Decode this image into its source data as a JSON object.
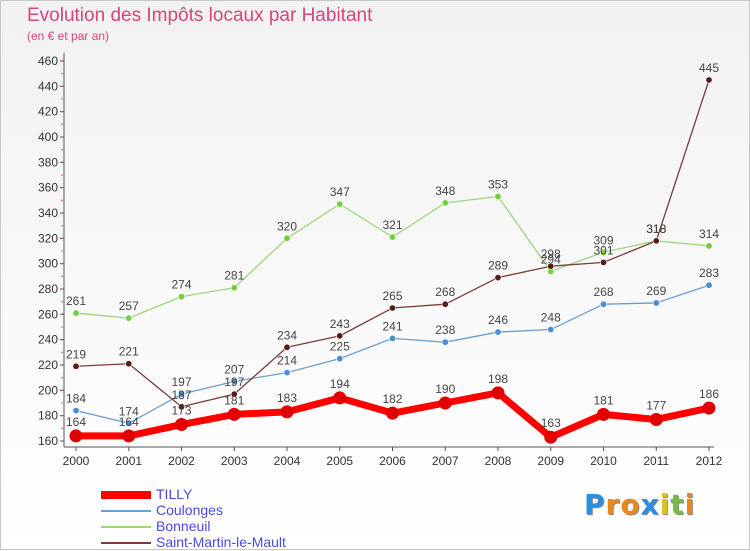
{
  "title": "Evolution des Impôts locaux par Habitant",
  "subtitle": "(en € et par an)",
  "logo": {
    "letters": [
      "P",
      "r",
      "o",
      "x",
      "i",
      "t",
      "i"
    ],
    "colors": [
      "#2a8fe0",
      "#e8881f",
      "#e8881f",
      "#2a8fe0",
      "#e0c21a",
      "#79bd3a",
      "#e8881f"
    ]
  },
  "chart_data": {
    "type": "line",
    "title": "Evolution des Impôts locaux par Habitant",
    "subtitle": "(en € et par an)",
    "x": [
      2000,
      2001,
      2002,
      2003,
      2004,
      2005,
      2006,
      2007,
      2008,
      2009,
      2010,
      2011,
      2012
    ],
    "ylim": [
      160,
      460
    ],
    "yticks": [
      160,
      180,
      200,
      220,
      240,
      260,
      280,
      300,
      320,
      340,
      360,
      380,
      400,
      420,
      440,
      460
    ],
    "grid": false,
    "legend_position": "bottom-left",
    "series": [
      {
        "name": "TILLY",
        "color": "#ff0000",
        "marker_color": "#e00000",
        "emphasis": true,
        "values": [
          164,
          164,
          173,
          181,
          183,
          194,
          182,
          190,
          198,
          163,
          181,
          177,
          186
        ]
      },
      {
        "name": "Coulonges",
        "color": "#6a9fcf",
        "marker_color": "#4a8fd4",
        "values": [
          184,
          174,
          197,
          207,
          214,
          225,
          241,
          238,
          246,
          248,
          268,
          269,
          283
        ]
      },
      {
        "name": "Bonneuil",
        "color": "#9ed67a",
        "marker_color": "#6fd03a",
        "values": [
          261,
          257,
          274,
          281,
          320,
          347,
          321,
          348,
          353,
          294,
          309,
          318,
          314
        ]
      },
      {
        "name": "Saint-Martin-le-Mault",
        "color": "#7a3c3c",
        "marker_color": "#5a1a1a",
        "values": [
          219,
          221,
          187,
          197,
          234,
          243,
          265,
          268,
          289,
          298,
          301,
          318,
          445
        ]
      }
    ]
  }
}
